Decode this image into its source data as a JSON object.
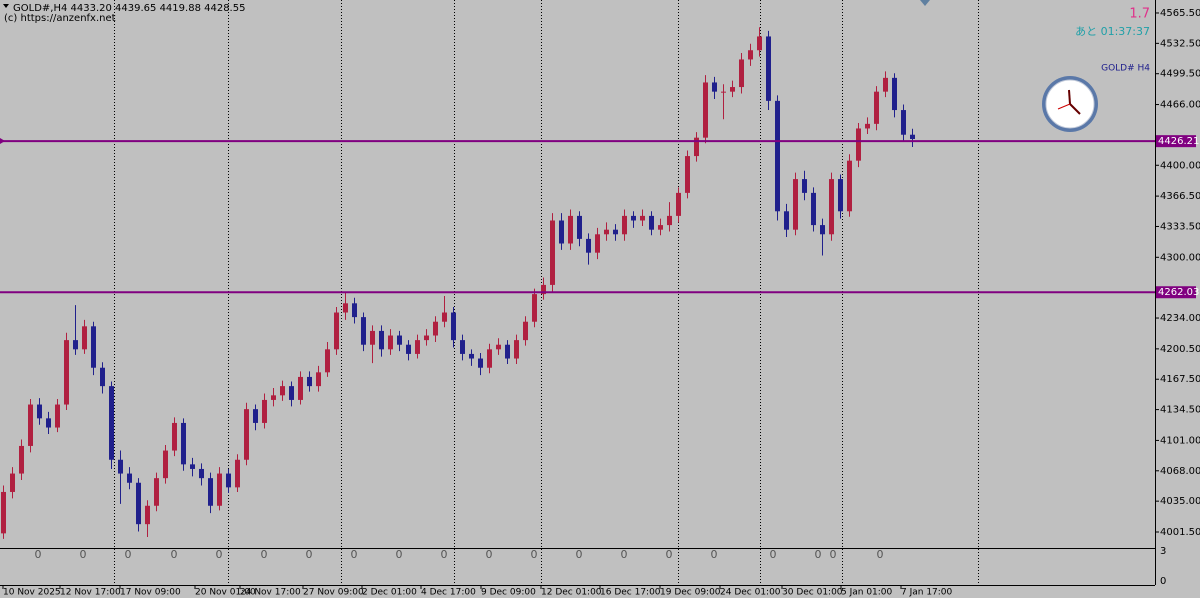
{
  "header": {
    "symbol_line": "GOLD#,H4  4433.20 4439.65 4419.88 4428.55",
    "copyright": "(c) https://anzenfx.net"
  },
  "overlay": {
    "spread": "1.7",
    "countdown": "あと 01:37:37",
    "clock_label": "GOLD# H4"
  },
  "chart_data": {
    "type": "candlestick",
    "up_color": "#b02040",
    "down_color": "#20208c",
    "open": [
      4000,
      4045,
      4065,
      4095,
      4140,
      4125,
      4115,
      4140,
      4210,
      4200,
      4225,
      4180,
      4160,
      4080,
      4065,
      4055,
      4010,
      4030,
      4060,
      4090,
      4120,
      4075,
      4070,
      4060,
      4030,
      4065,
      4050,
      4080,
      4135,
      4120,
      4145,
      4150,
      4160,
      4145,
      4170,
      4160,
      4175,
      4200,
      4240,
      4250,
      4235,
      4205,
      4220,
      4200,
      4215,
      4205,
      4195,
      4210,
      4215,
      4230,
      4240,
      4210,
      4195,
      4190,
      4180,
      4200,
      4205,
      4190,
      4210,
      4230,
      4260,
      4270,
      4340,
      4315,
      4345,
      4320,
      4305,
      4325,
      4330,
      4325,
      4345,
      4340,
      4345,
      4330,
      4335,
      4345,
      4370,
      4410,
      4430,
      4490,
      4480,
      4480,
      4485,
      4515,
      4525,
      4540,
      4470,
      4350,
      4330,
      4385,
      4370,
      4335,
      4325,
      4385,
      4350,
      4405,
      4440,
      4445,
      4480,
      4495,
      4460,
      4433.2
    ],
    "high": [
      4052,
      4072,
      4102,
      4146,
      4147,
      4132,
      4146,
      4218,
      4248,
      4232,
      4230,
      4186,
      4165,
      4090,
      4072,
      4060,
      4036,
      4066,
      4096,
      4126,
      4125,
      4082,
      4076,
      4066,
      4072,
      4070,
      4086,
      4142,
      4140,
      4152,
      4158,
      4166,
      4165,
      4176,
      4176,
      4182,
      4208,
      4246,
      4262,
      4256,
      4240,
      4226,
      4226,
      4222,
      4220,
      4210,
      4216,
      4222,
      4236,
      4258,
      4246,
      4216,
      4200,
      4196,
      4206,
      4212,
      4210,
      4216,
      4236,
      4266,
      4278,
      4348,
      4348,
      4352,
      4350,
      4326,
      4332,
      4338,
      4336,
      4352,
      4350,
      4352,
      4350,
      4342,
      4360,
      4376,
      4416,
      4436,
      4498,
      4496,
      4488,
      4492,
      4522,
      4532,
      4550,
      4546,
      4476,
      4358,
      4392,
      4394,
      4376,
      4342,
      4392,
      4390,
      4412,
      4446,
      4452,
      4486,
      4502,
      4500,
      4466,
      4439.65
    ],
    "low": [
      3994,
      4038,
      4058,
      4088,
      4118,
      4108,
      4110,
      4134,
      4194,
      4195,
      4172,
      4152,
      4070,
      4032,
      4048,
      4002,
      3996,
      4024,
      4054,
      4084,
      4068,
      4062,
      4052,
      4022,
      4025,
      4044,
      4045,
      4074,
      4112,
      4114,
      4138,
      4144,
      4138,
      4140,
      4154,
      4154,
      4170,
      4194,
      4232,
      4228,
      4198,
      4185,
      4192,
      4194,
      4198,
      4188,
      4190,
      4204,
      4208,
      4224,
      4202,
      4188,
      4182,
      4172,
      4174,
      4194,
      4184,
      4184,
      4204,
      4224,
      4254,
      4262,
      4308,
      4308,
      4312,
      4292,
      4298,
      4318,
      4318,
      4318,
      4332,
      4334,
      4324,
      4324,
      4328,
      4338,
      4364,
      4404,
      4424,
      4472,
      4450,
      4474,
      4478,
      4508,
      4518,
      4460,
      4340,
      4322,
      4324,
      4362,
      4328,
      4302,
      4318,
      4342,
      4344,
      4398,
      4434,
      4438,
      4474,
      4452,
      4426,
      4419.88
    ],
    "close": [
      4045,
      4065,
      4095,
      4140,
      4125,
      4115,
      4140,
      4210,
      4200,
      4225,
      4180,
      4160,
      4080,
      4065,
      4055,
      4010,
      4030,
      4060,
      4090,
      4120,
      4075,
      4070,
      4060,
      4030,
      4065,
      4050,
      4080,
      4135,
      4120,
      4145,
      4150,
      4160,
      4145,
      4170,
      4160,
      4175,
      4200,
      4240,
      4250,
      4235,
      4205,
      4220,
      4200,
      4215,
      4205,
      4195,
      4210,
      4215,
      4230,
      4240,
      4210,
      4195,
      4190,
      4180,
      4200,
      4205,
      4190,
      4210,
      4230,
      4260,
      4270,
      4340,
      4315,
      4345,
      4320,
      4305,
      4325,
      4330,
      4325,
      4345,
      4340,
      4345,
      4330,
      4335,
      4345,
      4370,
      4410,
      4430,
      4490,
      4480,
      4480,
      4485,
      4515,
      4525,
      4540,
      4470,
      4350,
      4330,
      4385,
      4370,
      4335,
      4325,
      4385,
      4350,
      4405,
      4440,
      4445,
      4480,
      4495,
      4460,
      4433.2,
      4428.55
    ],
    "ylim": [
      3984.1,
      4579.6
    ],
    "yticks": [
      {
        "value": 4565.5,
        "label": "4565.50"
      },
      {
        "value": 4532.5,
        "label": "4532.50"
      },
      {
        "value": 4499.5,
        "label": "4499.50"
      },
      {
        "value": 4466,
        "label": "4466.00"
      },
      {
        "value": 4400,
        "label": "4400.00"
      },
      {
        "value": 4366.5,
        "label": "4366.50"
      },
      {
        "value": 4333.5,
        "label": "4333.50"
      },
      {
        "value": 4300,
        "label": "4300.00"
      },
      {
        "value": 4234,
        "label": "4234.00"
      },
      {
        "value": 4200.5,
        "label": "4200.50"
      },
      {
        "value": 4167.5,
        "label": "4167.50"
      },
      {
        "value": 4134.5,
        "label": "4134.50"
      },
      {
        "value": 4101,
        "label": "4101.00"
      },
      {
        "value": 4068,
        "label": "4068.00"
      },
      {
        "value": 4035,
        "label": "4035.00"
      },
      {
        "value": 4001.5,
        "label": "4001.50"
      }
    ],
    "hlines": [
      {
        "value": 4426.21,
        "label": "4426.21",
        "color": "#800080"
      },
      {
        "value": 4262.03,
        "label": "4262.03",
        "color": "#800080"
      }
    ],
    "xlabels": [
      "10 Nov 2025",
      "12 Nov 17:00",
      "17 Nov 09:00",
      "20 Nov 01:00",
      "24 Nov 17:00",
      "27 Nov 09:00",
      "2 Dec 01:00",
      "4 Dec 17:00",
      "9 Dec 09:00",
      "12 Dec 01:00",
      "16 Dec 17:00",
      "19 Dec 09:00",
      "24 Dec 01:00",
      "30 Dec 01:00",
      "5 Jan 01:00",
      "7 Jan 17:00"
    ]
  },
  "indicator": {
    "ylim": [
      0,
      3
    ],
    "yticks": [
      3,
      0
    ],
    "values": [
      0,
      0,
      0,
      0,
      0,
      0,
      0,
      0,
      0,
      0,
      0,
      0,
      0,
      0,
      0,
      0,
      0,
      0,
      0,
      0
    ]
  }
}
